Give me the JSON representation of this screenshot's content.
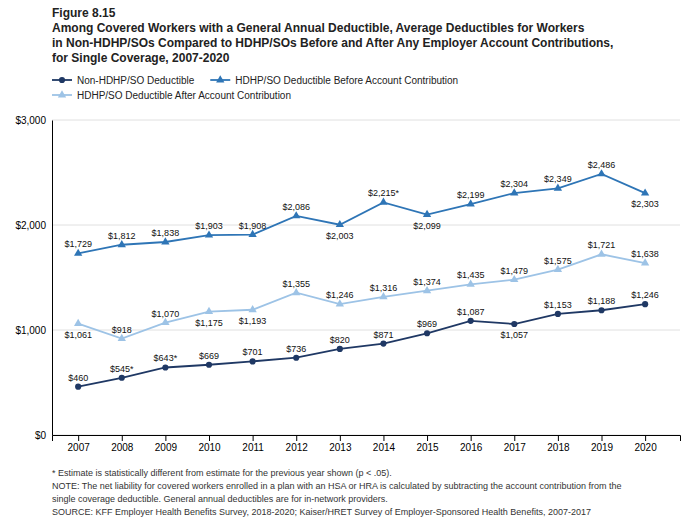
{
  "chart_data": {
    "type": "line",
    "title": [
      "Figure 8.15",
      "Among Covered Workers with a General Annual Deductible, Average Deductibles for Workers",
      "in Non-HDHP/SOs Compared to HDHP/SOs Before and After Any Employer Account Contributions,",
      "for Single Coverage, 2007-2020"
    ],
    "x": [
      2007,
      2008,
      2009,
      2010,
      2011,
      2012,
      2013,
      2014,
      2015,
      2016,
      2017,
      2018,
      2019,
      2020
    ],
    "xlim": [
      2006.4,
      2020.8
    ],
    "xticks": [
      2007,
      2008,
      2009,
      2010,
      2011,
      2012,
      2013,
      2014,
      2015,
      2016,
      2017,
      2018,
      2019,
      2020
    ],
    "ylim": [
      0,
      3000
    ],
    "yticks": [
      {
        "value": 0,
        "label": "$0"
      },
      {
        "value": 1000,
        "label": "$1,000"
      },
      {
        "value": 2000,
        "label": "$2,000"
      },
      {
        "value": 3000,
        "label": "$3,000"
      }
    ],
    "grid": true,
    "legend": "top",
    "data_labels": true,
    "series": [
      {
        "name": "Non-HDHP/SO Deductible",
        "color": "#1f3864",
        "marker": "circle",
        "values": [
          460,
          545,
          643,
          669,
          701,
          736,
          820,
          871,
          969,
          1087,
          1057,
          1153,
          1188,
          1246
        ],
        "value_labels": [
          "$460",
          "$545*",
          "$643*",
          "$669",
          "$701",
          "$736",
          "$820",
          "$871",
          "$969",
          "$1,087",
          "$1,057",
          "$1,153",
          "$1,188",
          "$1,246"
        ]
      },
      {
        "name": "HDHP/SO Deductible Before Account Contribution",
        "color": "#2e75b6",
        "marker": "triangle",
        "values": [
          1729,
          1812,
          1838,
          1903,
          1908,
          2086,
          2003,
          2215,
          2099,
          2199,
          2304,
          2349,
          2486,
          2303
        ],
        "value_labels": [
          "$1,729",
          "$1,812",
          "$1,838",
          "$1,903",
          "$1,908",
          "$2,086",
          "$2,003",
          "$2,215*",
          "$2,099",
          "$2,199",
          "$2,304",
          "$2,349",
          "$2,486",
          "$2,303"
        ]
      },
      {
        "name": "HDHP/SO Deductible After Account Contribution",
        "color": "#9dc3e6",
        "marker": "triangle",
        "values": [
          1061,
          918,
          1070,
          1175,
          1193,
          1355,
          1246,
          1316,
          1374,
          1435,
          1479,
          1575,
          1721,
          1638
        ],
        "value_labels": [
          "$1,061",
          "$918",
          "$1,070",
          "$1,175",
          "$1,193",
          "$1,355",
          "$1,246",
          "$1,316",
          "$1,374",
          "$1,435",
          "$1,479",
          "$1,575",
          "$1,721",
          "$1,638"
        ]
      }
    ],
    "annotations": [
      "* Estimate is statistically different from estimate for the previous year shown (p < .05).",
      "NOTE: The net liability for covered workers enrolled in a plan with an HSA or HRA is calculated by subtracting the account contribution from the",
      "single coverage deductible. General annual deductibles are for in-network providers.",
      "SOURCE: KFF Employer Health Benefits Survey, 2018-2020; Kaiser/HRET Survey of Employer-Sponsored Health Benefits, 2007-2017"
    ]
  }
}
